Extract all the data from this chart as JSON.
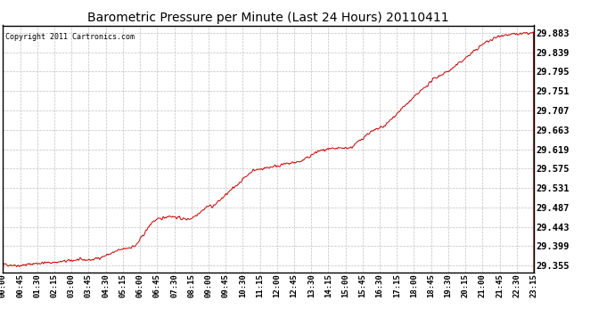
{
  "title": "Barometric Pressure per Minute (Last 24 Hours) 20110411",
  "copyright": "Copyright 2011 Cartronics.com",
  "line_color": "#cc0000",
  "background_color": "#ffffff",
  "grid_color": "#c0c0c0",
  "yticks": [
    29.355,
    29.399,
    29.443,
    29.487,
    29.531,
    29.575,
    29.619,
    29.663,
    29.707,
    29.751,
    29.795,
    29.839,
    29.883
  ],
  "ymin": 29.34,
  "ymax": 29.9,
  "xtick_labels": [
    "00:00",
    "00:45",
    "01:30",
    "02:15",
    "03:00",
    "03:45",
    "04:30",
    "05:15",
    "06:00",
    "06:45",
    "07:30",
    "08:15",
    "09:00",
    "09:45",
    "10:30",
    "11:15",
    "12:00",
    "12:45",
    "13:30",
    "14:15",
    "15:00",
    "15:45",
    "16:30",
    "17:15",
    "18:00",
    "18:45",
    "19:30",
    "20:15",
    "21:00",
    "21:45",
    "22:30",
    "23:15"
  ],
  "num_minutes": 1440,
  "seed": 42,
  "waypoints": [
    [
      0,
      29.358
    ],
    [
      45,
      29.355
    ],
    [
      90,
      29.36
    ],
    [
      150,
      29.363
    ],
    [
      200,
      29.368
    ],
    [
      240,
      29.368
    ],
    [
      270,
      29.375
    ],
    [
      315,
      29.39
    ],
    [
      360,
      29.4
    ],
    [
      405,
      29.455
    ],
    [
      450,
      29.468
    ],
    [
      495,
      29.46
    ],
    [
      510,
      29.462
    ],
    [
      540,
      29.48
    ],
    [
      555,
      29.49
    ],
    [
      570,
      29.49
    ],
    [
      630,
      29.535
    ],
    [
      675,
      29.57
    ],
    [
      720,
      29.578
    ],
    [
      765,
      29.585
    ],
    [
      810,
      29.592
    ],
    [
      855,
      29.615
    ],
    [
      900,
      29.62
    ],
    [
      945,
      29.623
    ],
    [
      990,
      29.655
    ],
    [
      1035,
      29.672
    ],
    [
      1080,
      29.71
    ],
    [
      1125,
      29.745
    ],
    [
      1170,
      29.78
    ],
    [
      1215,
      29.8
    ],
    [
      1260,
      29.83
    ],
    [
      1305,
      29.86
    ],
    [
      1350,
      29.878
    ],
    [
      1395,
      29.88
    ],
    [
      1439,
      29.883
    ]
  ]
}
